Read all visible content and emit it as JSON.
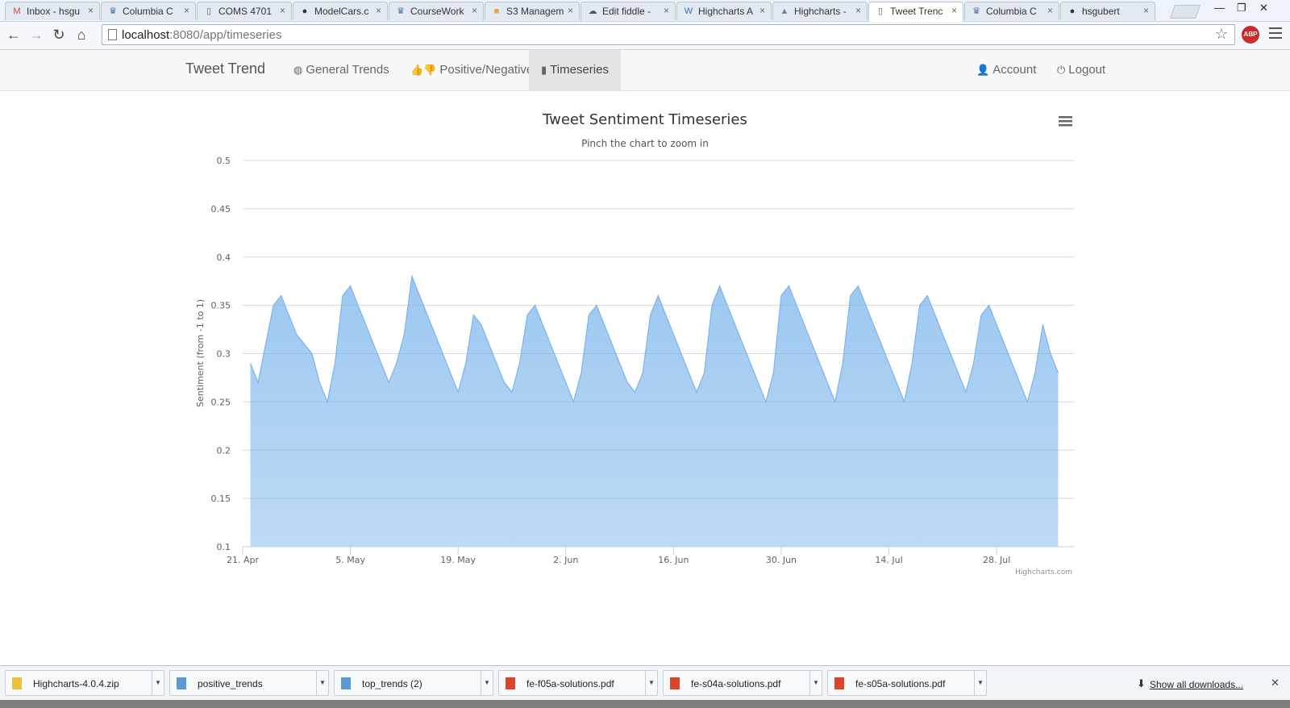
{
  "browser": {
    "tabs": [
      {
        "label": "Inbox - hsgu",
        "icon": "gmail-icon",
        "glyph": "M",
        "color": "#d44638"
      },
      {
        "label": "Columbia C",
        "icon": "crown-icon",
        "glyph": "♛",
        "color": "#4b6e9c"
      },
      {
        "label": "COMS 4701",
        "icon": "page-icon",
        "glyph": "▯",
        "color": "#666"
      },
      {
        "label": "ModelCars.c",
        "icon": "github-icon",
        "glyph": "●",
        "color": "#333"
      },
      {
        "label": "CourseWork",
        "icon": "crown-icon",
        "glyph": "♛",
        "color": "#4b6e9c"
      },
      {
        "label": "S3 Managem",
        "icon": "box-icon",
        "glyph": "■",
        "color": "#e8a33b"
      },
      {
        "label": "Edit fiddle -",
        "icon": "cloud-icon",
        "glyph": "☁",
        "color": "#555"
      },
      {
        "label": "Highcharts A",
        "icon": "wordpress-icon",
        "glyph": "W",
        "color": "#3a74b5"
      },
      {
        "label": "Highcharts -",
        "icon": "highcharts-icon",
        "glyph": "▲",
        "color": "#6c86a8"
      },
      {
        "label": "Tweet Trenc",
        "icon": "page-icon",
        "glyph": "▯",
        "color": "#666",
        "active": true
      },
      {
        "label": "Columbia C",
        "icon": "crown-icon",
        "glyph": "♛",
        "color": "#4b6e9c"
      },
      {
        "label": "hsgubert",
        "icon": "github-icon",
        "glyph": "●",
        "color": "#333"
      }
    ],
    "url_host": "localhost",
    "url_path": ":8080/app/timeseries",
    "abp_label": "ABP"
  },
  "navbar": {
    "brand": "Tweet Trend",
    "links": [
      {
        "label": "General Trends",
        "icon": "globe-icon",
        "glyph": "◍"
      },
      {
        "label": "Positive/Negative",
        "icon": "thumbs-icon",
        "glyph": "👍👎"
      },
      {
        "label": "Timeseries",
        "icon": "bar-chart-icon",
        "glyph": "▮",
        "active": true
      }
    ],
    "account": {
      "label": "Account",
      "icon": "user-icon",
      "glyph": "👤"
    },
    "logout": {
      "label": "Logout",
      "icon": "power-icon",
      "glyph": "⏻"
    }
  },
  "chart_data": {
    "type": "area",
    "title": "Tweet Sentiment Timeseries",
    "subtitle": "Pinch the chart to zoom in",
    "ylabel": "Sentiment (from -1 to 1)",
    "xlabel": "",
    "ylim": [
      0.1,
      0.5
    ],
    "yticks": [
      "0.5",
      "0.45",
      "0.4",
      "0.35",
      "0.3",
      "0.25",
      "0.2",
      "0.15",
      "0.1"
    ],
    "xlim": [
      "2014-04-21",
      "2014-08-06"
    ],
    "xticks": [
      {
        "label": "21. Apr",
        "date": "2014-04-21"
      },
      {
        "label": "5. May",
        "date": "2014-05-05"
      },
      {
        "label": "19. May",
        "date": "2014-05-19"
      },
      {
        "label": "2. Jun",
        "date": "2014-06-02"
      },
      {
        "label": "16. Jun",
        "date": "2014-06-16"
      },
      {
        "label": "30. Jun",
        "date": "2014-06-30"
      },
      {
        "label": "14. Jul",
        "date": "2014-07-14"
      },
      {
        "label": "28. Jul",
        "date": "2014-07-28"
      }
    ],
    "grid": true,
    "legend": "none",
    "series_color": "#7cb5ec",
    "series": [
      {
        "x": [
          "2014-04-22",
          "2014-04-23",
          "2014-04-24",
          "2014-04-25",
          "2014-04-26",
          "2014-04-27",
          "2014-04-28",
          "2014-04-29",
          "2014-04-30",
          "2014-05-01",
          "2014-05-02",
          "2014-05-03",
          "2014-05-04",
          "2014-05-05",
          "2014-05-06",
          "2014-05-07",
          "2014-05-08",
          "2014-05-09",
          "2014-05-10",
          "2014-05-11",
          "2014-05-12",
          "2014-05-13",
          "2014-05-14",
          "2014-05-15",
          "2014-05-16",
          "2014-05-17",
          "2014-05-18",
          "2014-05-19",
          "2014-05-20",
          "2014-05-21",
          "2014-05-22",
          "2014-05-23",
          "2014-05-24",
          "2014-05-25",
          "2014-05-26",
          "2014-05-27",
          "2014-05-28",
          "2014-05-29",
          "2014-05-30",
          "2014-05-31",
          "2014-06-01",
          "2014-06-02",
          "2014-06-03",
          "2014-06-04",
          "2014-06-05",
          "2014-06-06",
          "2014-06-07",
          "2014-06-08",
          "2014-06-09",
          "2014-06-10",
          "2014-06-11",
          "2014-06-12",
          "2014-06-13",
          "2014-06-14",
          "2014-06-15",
          "2014-06-16",
          "2014-06-17",
          "2014-06-18",
          "2014-06-19",
          "2014-06-20",
          "2014-06-21",
          "2014-06-22",
          "2014-06-23",
          "2014-06-24",
          "2014-06-25",
          "2014-06-26",
          "2014-06-27",
          "2014-06-28",
          "2014-06-29",
          "2014-06-30",
          "2014-07-01",
          "2014-07-02",
          "2014-07-03",
          "2014-07-04",
          "2014-07-05",
          "2014-07-06",
          "2014-07-07",
          "2014-07-08",
          "2014-07-09",
          "2014-07-10",
          "2014-07-11",
          "2014-07-12",
          "2014-07-13",
          "2014-07-14",
          "2014-07-15",
          "2014-07-16",
          "2014-07-17",
          "2014-07-18",
          "2014-07-19",
          "2014-07-20",
          "2014-07-21",
          "2014-07-22",
          "2014-07-23",
          "2014-07-24",
          "2014-07-25",
          "2014-07-26",
          "2014-07-27",
          "2014-07-28",
          "2014-07-29",
          "2014-07-30",
          "2014-07-31",
          "2014-08-01",
          "2014-08-02",
          "2014-08-03",
          "2014-08-04",
          "2014-08-05"
        ],
        "y": [
          0.29,
          0.27,
          0.31,
          0.35,
          0.36,
          0.34,
          0.32,
          0.31,
          0.3,
          0.27,
          0.25,
          0.29,
          0.36,
          0.37,
          0.35,
          0.33,
          0.31,
          0.29,
          0.27,
          0.29,
          0.32,
          0.38,
          0.36,
          0.34,
          0.32,
          0.3,
          0.28,
          0.26,
          0.29,
          0.34,
          0.33,
          0.31,
          0.29,
          0.27,
          0.26,
          0.29,
          0.34,
          0.35,
          0.33,
          0.31,
          0.29,
          0.27,
          0.25,
          0.28,
          0.34,
          0.35,
          0.33,
          0.31,
          0.29,
          0.27,
          0.26,
          0.28,
          0.34,
          0.36,
          0.34,
          0.32,
          0.3,
          0.28,
          0.26,
          0.28,
          0.35,
          0.37,
          0.35,
          0.33,
          0.31,
          0.29,
          0.27,
          0.25,
          0.28,
          0.36,
          0.37,
          0.35,
          0.33,
          0.31,
          0.29,
          0.27,
          0.25,
          0.29,
          0.36,
          0.37,
          0.35,
          0.33,
          0.31,
          0.29,
          0.27,
          0.25,
          0.29,
          0.35,
          0.36,
          0.34,
          0.32,
          0.3,
          0.28,
          0.26,
          0.29,
          0.34,
          0.35,
          0.33,
          0.31,
          0.29,
          0.27,
          0.25,
          0.28,
          0.33,
          0.3,
          0.28
        ]
      }
    ]
  },
  "downloads": {
    "items": [
      {
        "name": "Highcharts-4.0.4.zip",
        "icon": "zip-icon",
        "color": "#e8c23a"
      },
      {
        "name": "positive_trends",
        "icon": "file-icon",
        "color": "#5a9ad6"
      },
      {
        "name": "top_trends (2)",
        "icon": "file-icon",
        "color": "#5a9ad6"
      },
      {
        "name": "fe-f05a-solutions.pdf",
        "icon": "pdf-icon",
        "color": "#d9472b"
      },
      {
        "name": "fe-s04a-solutions.pdf",
        "icon": "pdf-icon",
        "color": "#d9472b"
      },
      {
        "name": "fe-s05a-solutions.pdf",
        "icon": "pdf-icon",
        "color": "#d9472b"
      }
    ],
    "show_all": "Show all downloads..."
  }
}
